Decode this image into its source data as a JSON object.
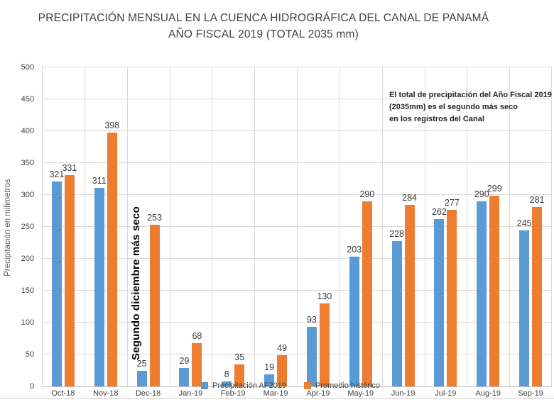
{
  "chart_data": {
    "type": "bar",
    "title": "PRECIPITACIÓN MENSUAL EN LA CUENCA HIDROGRÁFICA DEL CANAL DE PANAMÁ",
    "subtitle": "AÑO FISCAL 2019 (TOTAL 2035 mm)",
    "ylabel": "Precipitación en milimetros",
    "xlabel": "",
    "ylim": [
      0,
      500
    ],
    "yticks": [
      0,
      50,
      100,
      150,
      200,
      250,
      300,
      350,
      400,
      450,
      500
    ],
    "grid": true,
    "legend_position": "bottom-inside",
    "categories": [
      "Oct-18",
      "Nov-18",
      "Dec-18",
      "Jan-19",
      "Feb-19",
      "Mar-19",
      "Apr-19",
      "May-19",
      "Jun-19",
      "Jul-19",
      "Aug-19",
      "Sep-19"
    ],
    "series": [
      {
        "name": "Precipitación AF2019",
        "color": "#5B9BD5",
        "values": [
          321,
          311,
          25,
          29,
          8,
          19,
          93,
          203,
          228,
          262,
          290,
          245
        ]
      },
      {
        "name": "Promedio histórico",
        "color": "#ED7D31",
        "values": [
          331,
          398,
          253,
          68,
          35,
          49,
          130,
          290,
          284,
          277,
          299,
          281
        ]
      }
    ]
  },
  "annotations": {
    "box_lines": {
      "line1": "El total de precipitación del Año Fiscal 2019",
      "line2": "(2035mm) es el segundo más seco",
      "line3": "en los registros del Canal"
    },
    "vertical_text": "Segundo diciembre más seco"
  },
  "colors": {
    "bar_af2019": "#5B9BD5",
    "bar_historico": "#ED7D31",
    "gridline": "#D9D9D9",
    "axis_line": "#BFBFBF",
    "text": "#404040"
  }
}
